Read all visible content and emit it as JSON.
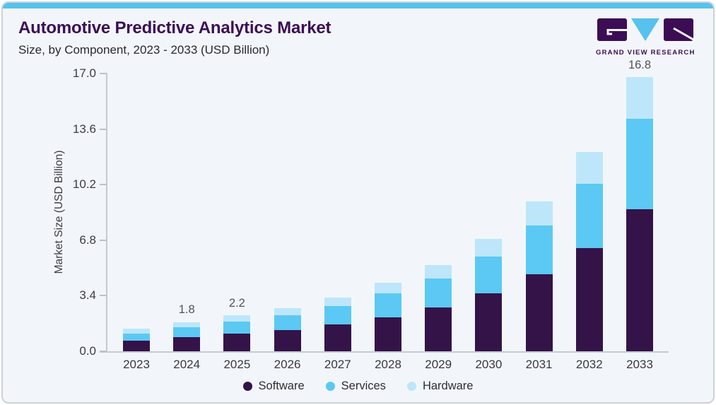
{
  "header": {
    "title": "Automotive Predictive Analytics Market",
    "subtitle": "Size, by Component, 2023 - 2033 (USD Billion)"
  },
  "logo": {
    "text": "GRAND VIEW RESEARCH"
  },
  "colors": {
    "accent_strip": "#56c2ee",
    "title_purple": "#3c0d55",
    "software": "#341349",
    "services": "#5bc9f3",
    "hardware": "#bde6fa",
    "axis_line": "#c5cacf",
    "card_background": "#f2f6fa"
  },
  "chart_data": {
    "type": "bar",
    "stacked": true,
    "title": "Automotive Predictive Analytics Market",
    "subtitle": "Size, by Component, 2023 - 2033 (USD Billion)",
    "xlabel": "",
    "ylabel": "Market Size (USD Billion)",
    "ylim": [
      0,
      17.0
    ],
    "yticks": [
      0.0,
      3.4,
      6.8,
      10.2,
      13.6,
      17.0
    ],
    "ytick_labels": [
      "0.0",
      "3.4",
      "6.8",
      "10.2",
      "13.6",
      "17.0"
    ],
    "grid": false,
    "legend_position": "bottom",
    "categories": [
      "2023",
      "2024",
      "2025",
      "2026",
      "2027",
      "2028",
      "2029",
      "2030",
      "2031",
      "2032",
      "2033"
    ],
    "series": [
      {
        "name": "Software",
        "color": "#341349",
        "values": [
          0.65,
          0.85,
          1.08,
          1.32,
          1.65,
          2.1,
          2.7,
          3.55,
          4.7,
          6.3,
          8.7
        ]
      },
      {
        "name": "Services",
        "color": "#5bc9f3",
        "values": [
          0.45,
          0.62,
          0.75,
          0.9,
          1.13,
          1.45,
          1.75,
          2.25,
          3.0,
          3.95,
          5.55
        ]
      },
      {
        "name": "Hardware",
        "color": "#bde6fa",
        "values": [
          0.3,
          0.33,
          0.37,
          0.43,
          0.5,
          0.65,
          0.85,
          1.1,
          1.48,
          1.95,
          2.55
        ]
      }
    ],
    "totals": [
      1.4,
      1.8,
      2.2,
      2.65,
      3.28,
      4.2,
      5.3,
      6.9,
      9.18,
      12.2,
      16.8
    ],
    "point_labels": [
      "",
      "1.8",
      "2.2",
      "",
      "",
      "",
      "",
      "",
      "",
      "",
      "16.8"
    ]
  }
}
